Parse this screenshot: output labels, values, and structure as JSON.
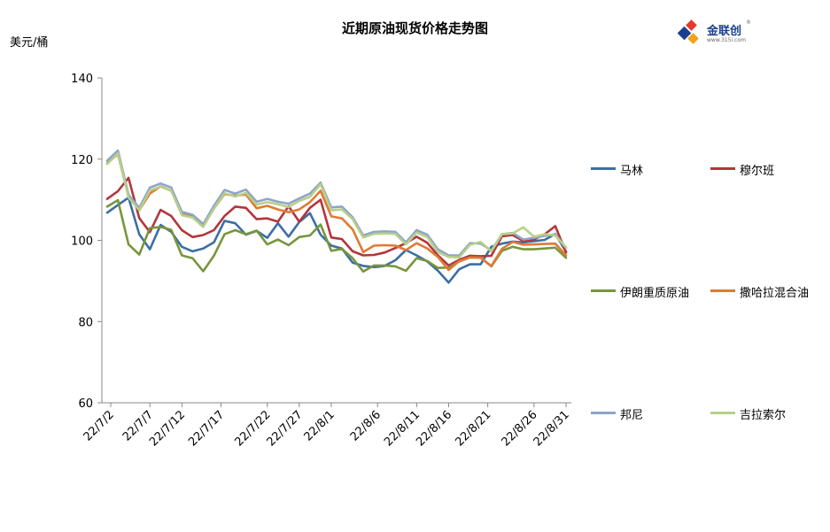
{
  "chart_data": {
    "type": "line",
    "title": "近期原油现货价格走势图",
    "ylabel": "美元/桶",
    "ylim": [
      60,
      140
    ],
    "yticks": [
      60,
      80,
      100,
      120,
      140
    ],
    "xtick_labels": [
      "22/7/2",
      "22/7/7",
      "22/7/12",
      "22/7/17",
      "22/7/22",
      "22/7/27",
      "22/8/1",
      "22/8/6",
      "22/8/11",
      "22/8/16",
      "22/8/21",
      "22/8/26",
      "22/8/31"
    ],
    "x": [
      "22/7/1",
      "22/7/4",
      "22/7/5",
      "22/7/6",
      "22/7/7",
      "22/7/8",
      "22/7/11",
      "22/7/12",
      "22/7/13",
      "22/7/14",
      "22/7/15",
      "22/7/18",
      "22/7/19",
      "22/7/20",
      "22/7/21",
      "22/7/22",
      "22/7/25",
      "22/7/26",
      "22/7/27",
      "22/7/28",
      "22/7/29",
      "22/8/1",
      "22/8/2",
      "22/8/3",
      "22/8/4",
      "22/8/5",
      "22/8/8",
      "22/8/9",
      "22/8/10",
      "22/8/11",
      "22/8/12",
      "22/8/15",
      "22/8/16",
      "22/8/17",
      "22/8/18",
      "22/8/19",
      "22/8/22",
      "22/8/23",
      "22/8/24",
      "22/8/25",
      "22/8/26",
      "22/8/29",
      "22/8/30",
      "22/8/31"
    ],
    "series": [
      {
        "name": "马林",
        "color": "#3c6ea5",
        "values": [
          106.8,
          108.7,
          110.5,
          101.5,
          97.8,
          103.8,
          102.1,
          98.4,
          97.3,
          98.0,
          99.5,
          104.8,
          104.2,
          101.4,
          102.3,
          100.6,
          104.2,
          100.9,
          104.5,
          106.7,
          101.4,
          98.7,
          98.0,
          94.5,
          93.7,
          93.4,
          93.7,
          95.1,
          97.6,
          96.3,
          94.8,
          92.5,
          89.6,
          92.9,
          94.1,
          94.1,
          98.4,
          99.2,
          99.7,
          99.5,
          99.8,
          100.1,
          101.6,
          97.2
        ]
      },
      {
        "name": "穆尔班",
        "color": "#b2363b",
        "values": [
          110.2,
          112.1,
          115.4,
          105.5,
          102.0,
          107.5,
          106.0,
          102.5,
          100.8,
          101.3,
          102.5,
          106.0,
          108.3,
          108.0,
          105.2,
          105.4,
          104.6,
          108.4,
          104.6,
          108.0,
          110.0,
          100.7,
          100.3,
          97.3,
          96.3,
          96.4,
          97.0,
          98.1,
          99.3,
          100.9,
          99.4,
          96.3,
          93.8,
          95.2,
          96.2,
          96.1,
          96.2,
          101.0,
          101.3,
          99.8,
          100.2,
          101.5,
          103.5,
          97.0
        ]
      },
      {
        "name": "伊朗重质原油",
        "color": "#77963d",
        "values": [
          108.3,
          109.9,
          99.0,
          96.5,
          103.0,
          103.3,
          102.6,
          96.3,
          95.6,
          92.4,
          96.2,
          101.5,
          102.5,
          101.5,
          102.4,
          99.0,
          100.2,
          98.8,
          100.8,
          101.2,
          103.9,
          97.4,
          97.9,
          95.6,
          92.3,
          93.8,
          93.8,
          93.6,
          92.5,
          95.6,
          94.9,
          93.2,
          93.3,
          94.8,
          95.8,
          95.7,
          93.6,
          97.4,
          98.4,
          97.8,
          97.8,
          98.0,
          98.2,
          95.7
        ]
      },
      {
        "name": "撒哈拉混合油",
        "color": "#e07a35",
        "values": [
          119.0,
          121.2,
          110.8,
          107.4,
          111.5,
          113.3,
          112.2,
          106.5,
          105.8,
          103.7,
          107.8,
          111.4,
          111.0,
          111.3,
          107.9,
          108.5,
          107.6,
          106.9,
          107.6,
          109.4,
          112.2,
          105.9,
          105.4,
          102.7,
          97.1,
          98.7,
          98.8,
          98.7,
          97.6,
          99.3,
          98.0,
          95.9,
          92.7,
          94.9,
          95.8,
          95.7,
          93.7,
          97.9,
          99.6,
          98.9,
          99.0,
          99.1,
          99.2,
          96.3
        ]
      },
      {
        "name": "邦尼",
        "color": "#8fa4c9",
        "values": [
          119.6,
          122.1,
          111.2,
          108.0,
          113.0,
          114.0,
          113.0,
          107.0,
          106.3,
          104.0,
          108.5,
          112.4,
          111.5,
          112.5,
          109.5,
          110.2,
          109.5,
          109.0,
          110.3,
          111.5,
          114.2,
          108.1,
          108.3,
          105.7,
          101.2,
          102.1,
          102.2,
          102.1,
          99.5,
          102.5,
          101.4,
          97.8,
          96.3,
          96.3,
          99.3,
          99.2,
          97.5,
          101.5,
          101.8,
          100.2,
          100.6,
          101.1,
          101.5,
          98.2
        ]
      },
      {
        "name": "吉拉索尔",
        "color": "#b7d08a",
        "values": [
          118.8,
          121.4,
          110.6,
          107.4,
          112.3,
          113.2,
          112.2,
          106.2,
          105.6,
          103.3,
          107.8,
          111.6,
          110.8,
          111.7,
          108.8,
          109.4,
          108.9,
          108.2,
          109.7,
          110.7,
          113.8,
          107.4,
          107.6,
          105.2,
          100.7,
          101.6,
          101.7,
          101.6,
          99.0,
          101.9,
          100.8,
          97.1,
          95.9,
          95.8,
          98.9,
          99.6,
          97.3,
          101.5,
          101.7,
          103.2,
          100.9,
          101.5,
          101.2,
          98.2
        ]
      }
    ],
    "legend_position": "right",
    "grid": false
  },
  "logo": {
    "name": "金联创",
    "url_text": "www.315i.com",
    "reg": "®"
  }
}
